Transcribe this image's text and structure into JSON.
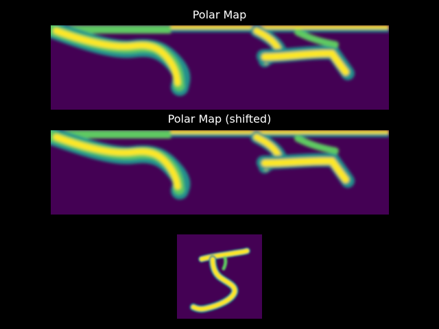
{
  "figure": {
    "panels": [
      {
        "title": "Polar Map",
        "kind": "polar-image",
        "colormap": "viridis"
      },
      {
        "title": "Polar Map (shifted)",
        "kind": "polar-image",
        "colormap": "viridis"
      },
      {
        "title": "",
        "kind": "digit-image",
        "colormap": "viridis"
      }
    ]
  },
  "colors": {
    "background": "#000000",
    "low": "#440154",
    "mid_dark": "#3b528b",
    "mid": "#21918c",
    "mid_light": "#5ec962",
    "high": "#fde725"
  }
}
